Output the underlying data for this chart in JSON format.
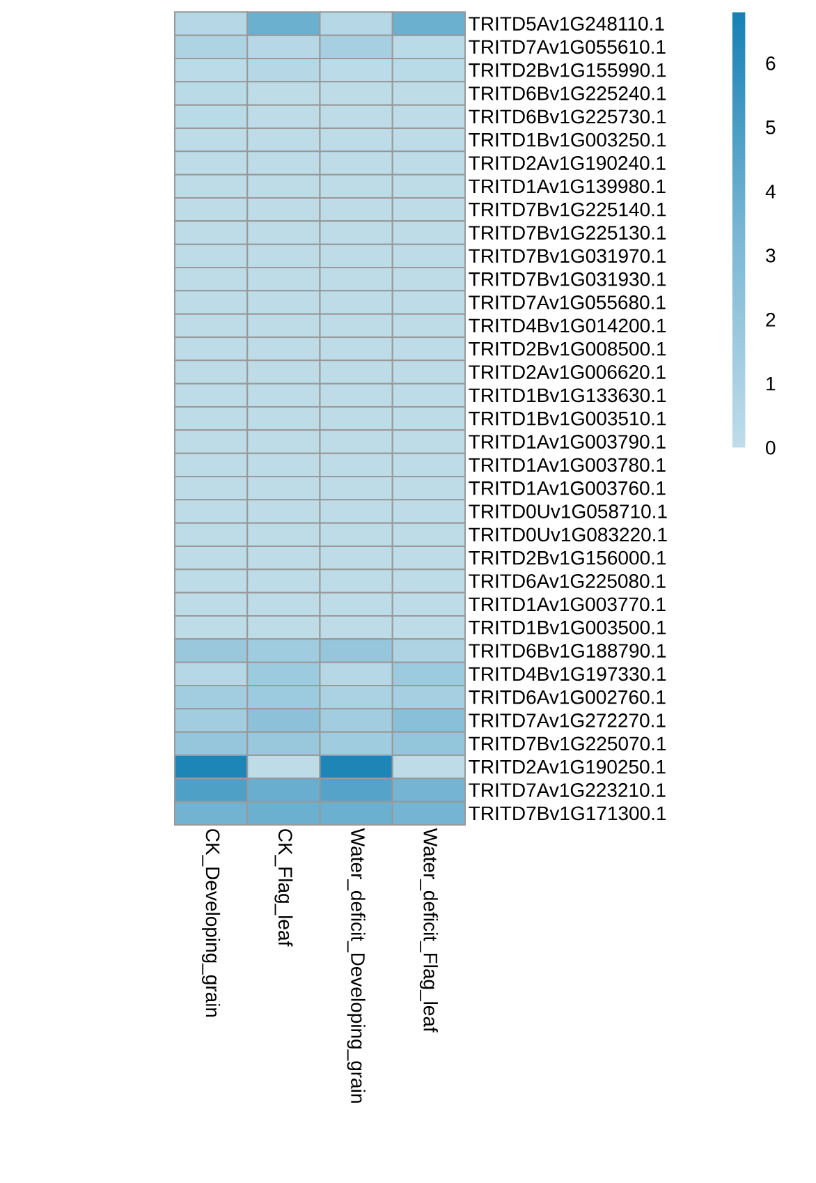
{
  "chart_data": {
    "type": "heatmap",
    "categories": [
      "CK_Developing_grain",
      "CK_Flag_leaf",
      "Water_deficit_Developing_grain",
      "Water_deficit_Flag_leaf"
    ],
    "y_categories": [
      "TRITD5Av1G248110.1",
      "TRITD7Av1G055610.1",
      "TRITD2Bv1G155990.1",
      "TRITD6Bv1G225240.1",
      "TRITD6Bv1G225730.1",
      "TRITD1Bv1G003250.1",
      "TRITD2Av1G190240.1",
      "TRITD1Av1G139980.1",
      "TRITD7Bv1G225140.1",
      "TRITD7Bv1G225130.1",
      "TRITD7Bv1G031970.1",
      "TRITD7Bv1G031930.1",
      "TRITD7Av1G055680.1",
      "TRITD4Bv1G014200.1",
      "TRITD2Bv1G008500.1",
      "TRITD2Av1G006620.1",
      "TRITD1Bv1G133630.1",
      "TRITD1Bv1G003510.1",
      "TRITD1Av1G003790.1",
      "TRITD1Av1G003780.1",
      "TRITD1Av1G003760.1",
      "TRITD0Uv1G058710.1",
      "TRITD0Uv1G083220.1",
      "TRITD2Bv1G156000.1",
      "TRITD6Av1G225080.1",
      "TRITD1Av1G003770.1",
      "TRITD1Bv1G003500.1",
      "TRITD6Bv1G188790.1",
      "TRITD4Bv1G197330.1",
      "TRITD6Av1G002760.1",
      "TRITD7Av1G272270.1",
      "TRITD7Bv1G225070.1",
      "TRITD2Av1G190250.1",
      "TRITD7Av1G223210.1",
      "TRITD7Bv1G171300.1"
    ],
    "cells": [
      [
        0.5,
        3.8,
        0.5,
        3.8
      ],
      [
        0.8,
        0.5,
        1.2,
        0.3
      ],
      [
        0.2,
        0.5,
        0.2,
        0.3
      ],
      [
        0.3,
        0.1,
        0.1,
        0.1
      ],
      [
        0.3,
        0.1,
        0.1,
        0.1
      ],
      [
        0.1,
        0.1,
        0.1,
        0.1
      ],
      [
        0.1,
        0.1,
        0.1,
        0.1
      ],
      [
        0.1,
        0.1,
        0.1,
        0.1
      ],
      [
        0.1,
        0.1,
        0.1,
        0.1
      ],
      [
        0.1,
        0.1,
        0.1,
        0.1
      ],
      [
        0.1,
        0.1,
        0.1,
        0.1
      ],
      [
        0.1,
        0.1,
        0.1,
        0.1
      ],
      [
        0.1,
        0.1,
        0.1,
        0.1
      ],
      [
        0.1,
        0.1,
        0.1,
        0.1
      ],
      [
        0.1,
        0.1,
        0.1,
        0.1
      ],
      [
        0.1,
        0.1,
        0.1,
        0.1
      ],
      [
        0.1,
        0.1,
        0.1,
        0.1
      ],
      [
        0.1,
        0.1,
        0.1,
        0.1
      ],
      [
        0.1,
        0.1,
        0.1,
        0.1
      ],
      [
        0.1,
        0.1,
        0.1,
        0.1
      ],
      [
        0.1,
        0.1,
        0.1,
        0.1
      ],
      [
        0.1,
        0.1,
        0.1,
        0.1
      ],
      [
        0.1,
        0.1,
        0.1,
        0.1
      ],
      [
        0.1,
        0.1,
        0.1,
        0.1
      ],
      [
        0.1,
        0.1,
        0.1,
        0.1
      ],
      [
        0.1,
        0.1,
        0.1,
        0.1
      ],
      [
        0.1,
        0.1,
        0.1,
        0.1
      ],
      [
        1.8,
        1.5,
        2.0,
        0.8
      ],
      [
        0.5,
        1.7,
        0.5,
        1.7
      ],
      [
        1.4,
        1.7,
        1.0,
        1.2
      ],
      [
        1.4,
        2.4,
        1.4,
        2.6
      ],
      [
        2.0,
        1.8,
        1.5,
        2.1
      ],
      [
        6.5,
        0.1,
        6.5,
        0.1
      ],
      [
        4.8,
        3.9,
        4.6,
        3.5
      ],
      [
        3.6,
        3.8,
        3.8,
        3.5
      ]
    ],
    "clim": [
      0,
      6.8
    ],
    "cticks": [
      0,
      1,
      2,
      3,
      4,
      5,
      6
    ]
  }
}
